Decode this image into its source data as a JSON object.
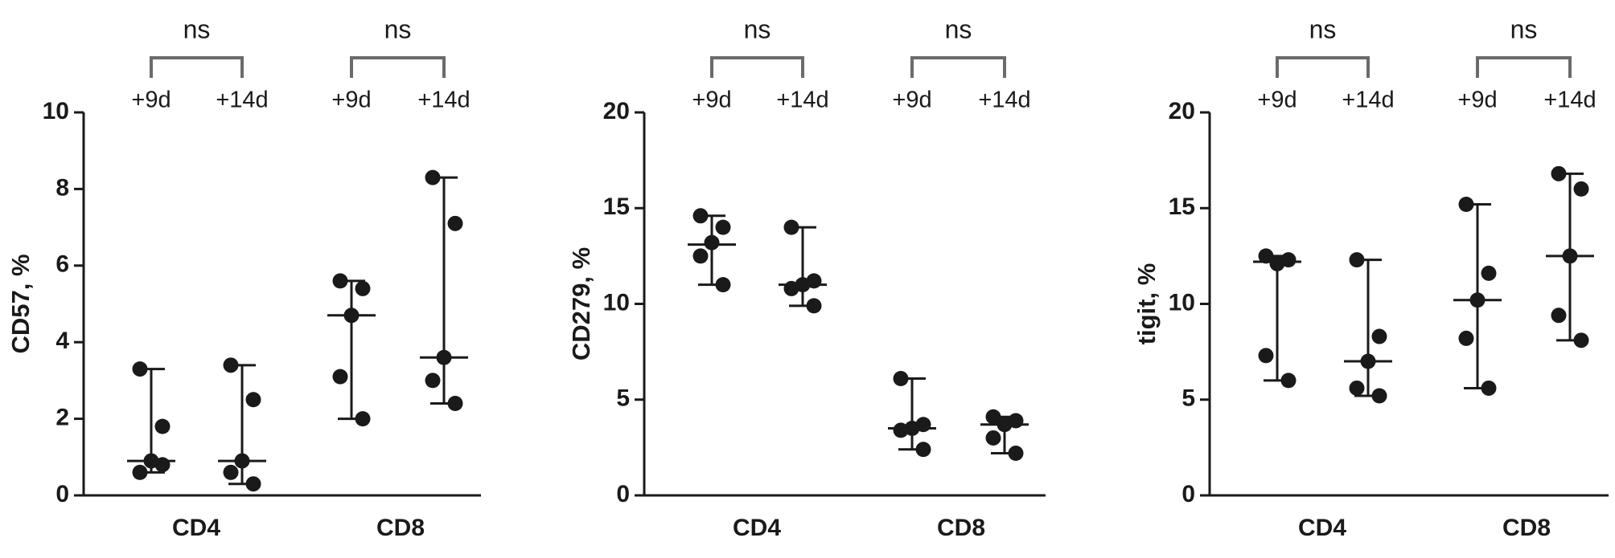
{
  "chart_data": [
    {
      "type": "dotplot",
      "ylabel": "CD57, %",
      "ylim": [
        0,
        10
      ],
      "yticks": [
        0,
        2,
        4,
        6,
        8,
        10
      ],
      "categories": [
        "CD4",
        "CD8"
      ],
      "significance": [
        "ns",
        "ns"
      ],
      "series": [
        {
          "name": "+9d",
          "color": "#1a1a1a",
          "values": [
            [
              3.3,
              1.8,
              0.9,
              0.6,
              0.8
            ],
            [
              5.6,
              5.4,
              4.7,
              3.1,
              2.0
            ]
          ],
          "medians": [
            0.9,
            4.7
          ]
        },
        {
          "name": "+14d",
          "color": "#1a1a1a",
          "values": [
            [
              3.4,
              2.5,
              0.9,
              0.6,
              0.3
            ],
            [
              8.3,
              7.1,
              3.6,
              3.0,
              2.4
            ]
          ],
          "medians": [
            0.9,
            3.6
          ]
        }
      ]
    },
    {
      "type": "dotplot",
      "ylabel": "CD279, %",
      "ylim": [
        0,
        20
      ],
      "yticks": [
        0,
        5,
        10,
        15,
        20
      ],
      "categories": [
        "CD4",
        "CD8"
      ],
      "significance": [
        "ns",
        "ns"
      ],
      "series": [
        {
          "name": "+9d",
          "color": "#1a1a1a",
          "values": [
            [
              14.6,
              14.0,
              13.2,
              12.5,
              11.0
            ],
            [
              6.1,
              3.7,
              3.5,
              3.4,
              2.4
            ]
          ],
          "medians": [
            13.1,
            3.5
          ]
        },
        {
          "name": "+14d",
          "color": "#1a1a1a",
          "values": [
            [
              14.0,
              11.2,
              11.0,
              10.8,
              9.9
            ],
            [
              4.1,
              3.9,
              3.7,
              3.0,
              2.2
            ]
          ],
          "medians": [
            11.0,
            3.7
          ]
        }
      ]
    },
    {
      "type": "dotplot",
      "ylabel": "tigit, %",
      "ylim": [
        0,
        20
      ],
      "yticks": [
        0,
        5,
        10,
        15,
        20
      ],
      "categories": [
        "CD4",
        "CD8"
      ],
      "significance": [
        "ns",
        "ns"
      ],
      "series": [
        {
          "name": "+9d",
          "color": "#1a1a1a",
          "values": [
            [
              12.5,
              12.3,
              12.1,
              7.3,
              6.0
            ],
            [
              15.2,
              11.6,
              10.2,
              8.2,
              5.6
            ]
          ],
          "medians": [
            12.2,
            10.2
          ]
        },
        {
          "name": "+14d",
          "color": "#1a1a1a",
          "values": [
            [
              12.3,
              8.3,
              7.0,
              5.6,
              5.2
            ],
            [
              16.8,
              16.0,
              12.5,
              9.4,
              8.1
            ]
          ],
          "medians": [
            7.0,
            12.5
          ]
        }
      ]
    }
  ]
}
